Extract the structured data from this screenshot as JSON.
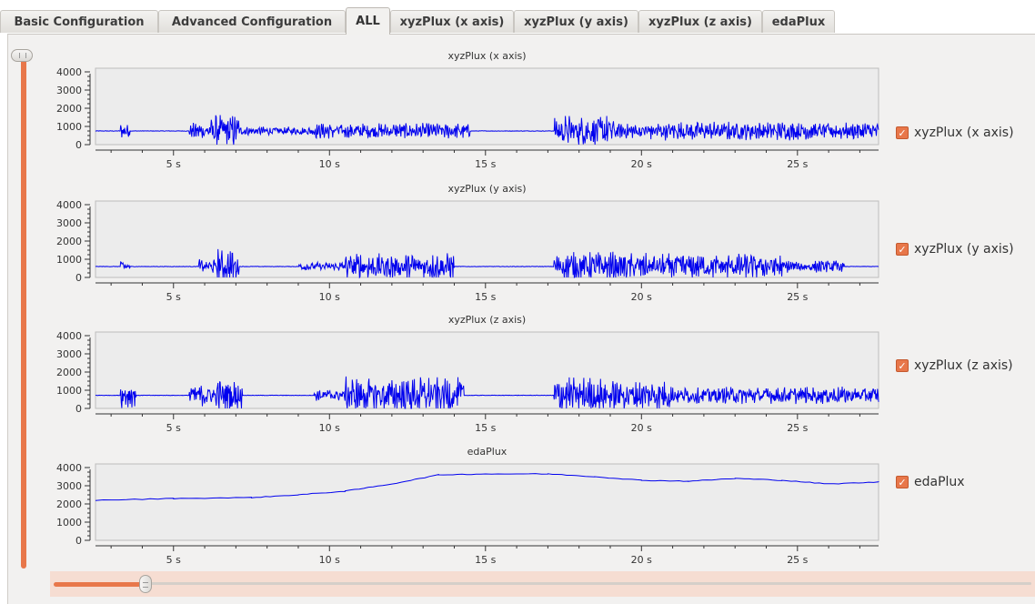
{
  "tabs": [
    {
      "label": "Basic Configuration",
      "active": false
    },
    {
      "label": "Advanced Configuration",
      "active": false
    },
    {
      "label": "ALL",
      "active": true
    },
    {
      "label": "xyzPlux (x axis)",
      "active": false
    },
    {
      "label": "xyzPlux (y axis)",
      "active": false
    },
    {
      "label": "xyzPlux (z axis)",
      "active": false
    },
    {
      "label": "edaPlux",
      "active": false
    }
  ],
  "legend": [
    {
      "label": "xyzPlux (x axis)",
      "checked": true
    },
    {
      "label": "xyzPlux (y axis)",
      "checked": true
    },
    {
      "label": "xyzPlux (z axis)",
      "checked": true
    },
    {
      "label": "edaPlux",
      "checked": true
    }
  ],
  "colors": {
    "accent": "#e8774a",
    "line": "#0000ee",
    "plot_bg": "#ececec"
  },
  "chart_data": [
    {
      "type": "line",
      "title": "xyzPlux (x axis)",
      "x_ticks": [
        "5 s",
        "10 s",
        "15 s",
        "20 s",
        "25 s"
      ],
      "y_ticks": [
        "4000",
        "3000",
        "2000",
        "1000",
        "0"
      ],
      "xlim": [
        2.5,
        27.6
      ],
      "ylim": [
        0,
        4000
      ],
      "series": [
        {
          "name": "xyzPlux (x axis)",
          "baseline": 750,
          "bursts": [
            [
              3.3,
              3.6,
              300
            ],
            [
              5.5,
              6.2,
              350
            ],
            [
              6.2,
              7.1,
              700
            ],
            [
              7.1,
              9.5,
              180
            ],
            [
              9.5,
              14.5,
              320
            ],
            [
              17.2,
              19.2,
              650
            ],
            [
              19.2,
              20.2,
              300
            ],
            [
              20.2,
              27.6,
              380
            ]
          ]
        }
      ]
    },
    {
      "type": "line",
      "title": "xyzPlux (y axis)",
      "x_ticks": [
        "5 s",
        "10 s",
        "15 s",
        "20 s",
        "25 s"
      ],
      "y_ticks": [
        "4000",
        "3000",
        "2000",
        "1000",
        "0"
      ],
      "xlim": [
        2.5,
        27.6
      ],
      "ylim": [
        0,
        4000
      ],
      "series": [
        {
          "name": "xyzPlux (y axis)",
          "baseline": 600,
          "bursts": [
            [
              3.3,
              3.6,
              250
            ],
            [
              5.8,
              6.4,
              300
            ],
            [
              6.4,
              7.1,
              750
            ],
            [
              9.0,
              10.5,
              200
            ],
            [
              10.5,
              14.0,
              550
            ],
            [
              17.2,
              19.5,
              600
            ],
            [
              19.5,
              24.5,
              550
            ],
            [
              24.5,
              26.5,
              250
            ]
          ]
        }
      ]
    },
    {
      "type": "line",
      "title": "xyzPlux (z axis)",
      "x_ticks": [
        "5 s",
        "10 s",
        "15 s",
        "20 s",
        "25 s"
      ],
      "y_ticks": [
        "4000",
        "3000",
        "2000",
        "1000",
        "0"
      ],
      "xlim": [
        2.5,
        27.6
      ],
      "ylim": [
        0,
        4000
      ],
      "series": [
        {
          "name": "xyzPlux (z axis)",
          "baseline": 720,
          "bursts": [
            [
              3.3,
              3.8,
              550
            ],
            [
              5.5,
              6.3,
              450
            ],
            [
              6.3,
              7.2,
              700
            ],
            [
              9.5,
              10.5,
              250
            ],
            [
              10.5,
              14.3,
              750
            ],
            [
              17.2,
              18.8,
              750
            ],
            [
              18.8,
              21.0,
              600
            ],
            [
              21.0,
              27.6,
              350
            ]
          ]
        }
      ]
    },
    {
      "type": "line",
      "title": "edaPlux",
      "x_ticks": [
        "5 s",
        "10 s",
        "15 s",
        "20 s",
        "25 s"
      ],
      "y_ticks": [
        "4000",
        "3000",
        "2000",
        "1000",
        "0"
      ],
      "xlim": [
        2.5,
        27.6
      ],
      "ylim": [
        0,
        4000
      ],
      "series": [
        {
          "name": "edaPlux",
          "x": [
            2.5,
            5,
            7.5,
            9,
            10.5,
            12,
            13.5,
            15,
            17,
            18.5,
            20,
            21.5,
            23,
            24.5,
            26,
            27.6
          ],
          "y": [
            2200,
            2300,
            2350,
            2500,
            2700,
            3100,
            3600,
            3650,
            3650,
            3500,
            3300,
            3250,
            3400,
            3300,
            3100,
            3200
          ]
        }
      ]
    }
  ]
}
